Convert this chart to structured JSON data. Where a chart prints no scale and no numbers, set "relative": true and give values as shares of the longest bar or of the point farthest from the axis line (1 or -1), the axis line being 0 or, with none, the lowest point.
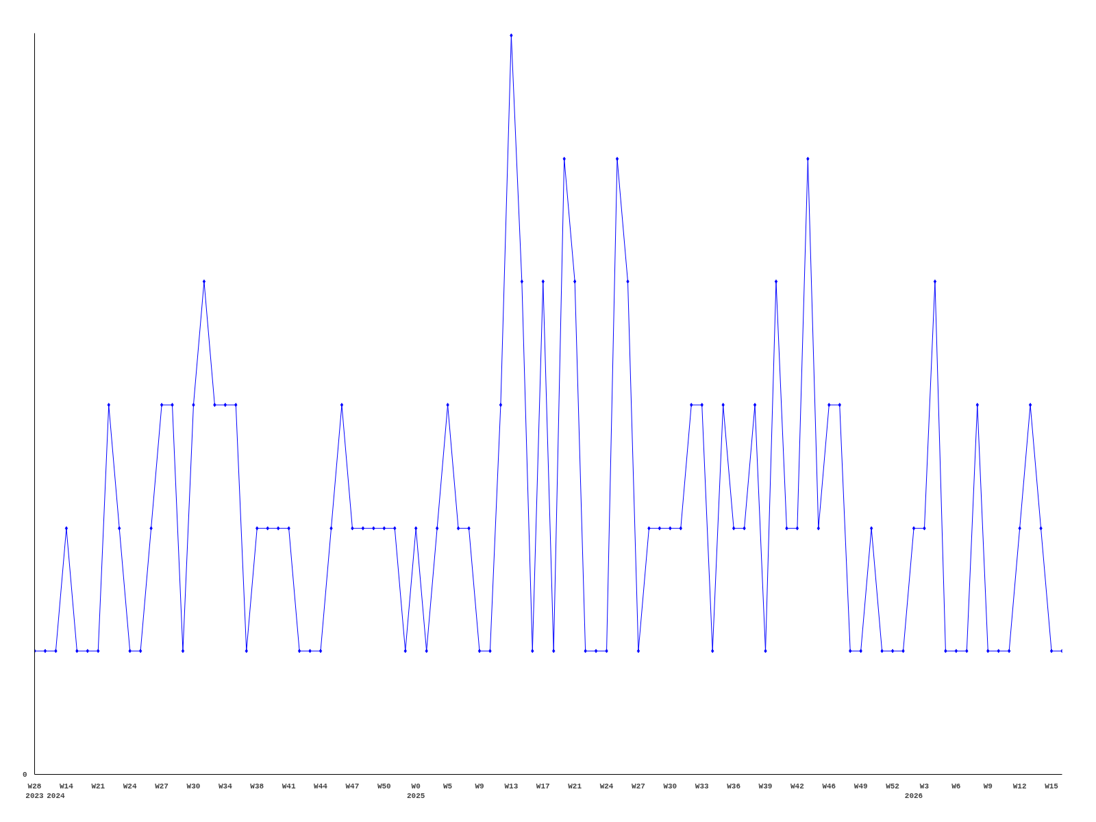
{
  "chart_data": {
    "type": "line",
    "relative": true,
    "color": "#0000ff",
    "marker": "diamond",
    "line_style": "solid",
    "grid": false,
    "legend": false,
    "categories": [
      "W28\n2023",
      null,
      "\n2024",
      "W14",
      null,
      null,
      "W21",
      null,
      null,
      "W24",
      null,
      null,
      "W27",
      null,
      null,
      "W30",
      null,
      null,
      "W34",
      null,
      null,
      "W38",
      null,
      null,
      "W41",
      null,
      null,
      "W44",
      null,
      null,
      "W47",
      null,
      null,
      "W50",
      null,
      null,
      "W0\n2025",
      null,
      null,
      "W5",
      null,
      null,
      "W9",
      null,
      null,
      "W13",
      null,
      null,
      "W17",
      null,
      null,
      "W21",
      null,
      null,
      "W24",
      null,
      null,
      "W27",
      null,
      null,
      "W30",
      null,
      null,
      "W33",
      null,
      null,
      "W36",
      null,
      null,
      "W39",
      null,
      null,
      "W42",
      null,
      null,
      "W46",
      null,
      null,
      "W49",
      null,
      null,
      "W52",
      null,
      "\n2026",
      "W3",
      null,
      null,
      "W6",
      null,
      null,
      "W9",
      null,
      null,
      "W12",
      null,
      null,
      "W15",
      null
    ],
    "values": [
      0.167,
      0.167,
      0.167,
      0.333,
      0.167,
      0.167,
      0.167,
      0.5,
      0.333,
      0.167,
      0.167,
      0.333,
      0.5,
      0.5,
      0.167,
      0.5,
      0.667,
      0.5,
      0.5,
      0.5,
      0.167,
      0.333,
      0.333,
      0.333,
      0.333,
      0.167,
      0.167,
      0.167,
      0.333,
      0.5,
      0.333,
      0.333,
      0.333,
      0.333,
      0.333,
      0.167,
      0.333,
      0.167,
      0.333,
      0.5,
      0.333,
      0.333,
      0.167,
      0.167,
      0.5,
      1,
      0.667,
      0.167,
      0.667,
      0.167,
      0.833,
      0.667,
      0.167,
      0.167,
      0.167,
      0.833,
      0.667,
      0.167,
      0.333,
      0.333,
      0.333,
      0.333,
      0.5,
      0.5,
      0.167,
      0.5,
      0.333,
      0.333,
      0.5,
      0.167,
      0.667,
      0.333,
      0.333,
      0.833,
      0.333,
      0.5,
      0.5,
      0.167,
      0.167,
      0.333,
      0.167,
      0.167,
      0.167,
      0.333,
      0.333,
      0.667,
      0.167,
      0.167,
      0.167,
      0.5,
      0.167,
      0.167,
      0.167,
      0.333,
      0.5,
      0.333,
      0.167,
      0.167
    ],
    "annotations": [
      "0"
    ]
  }
}
